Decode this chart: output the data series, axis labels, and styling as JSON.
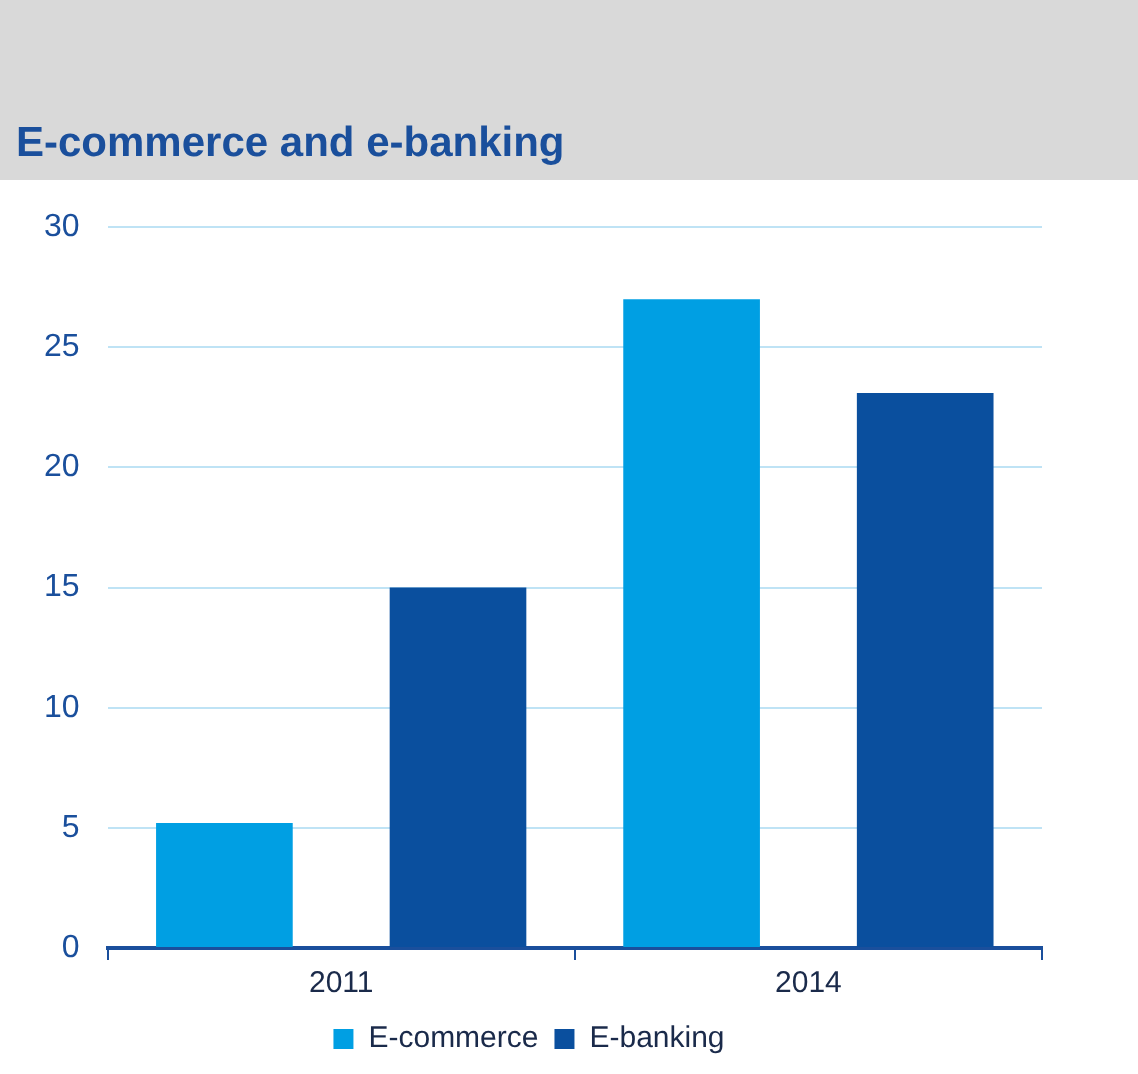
{
  "chart_data": {
    "type": "bar",
    "title": "E-commerce and e-banking",
    "categories": [
      "2011",
      "2014"
    ],
    "series": [
      {
        "name": "E-commerce",
        "color": "#009fe3",
        "values": [
          5.2,
          27
        ]
      },
      {
        "name": "E-banking",
        "color": "#0a4f9e",
        "values": [
          15,
          23.1
        ]
      }
    ],
    "ylim": [
      0,
      30
    ],
    "yticks": [
      0,
      5,
      10,
      15,
      20,
      25,
      30
    ],
    "grid": "y",
    "legend": "bottom"
  }
}
